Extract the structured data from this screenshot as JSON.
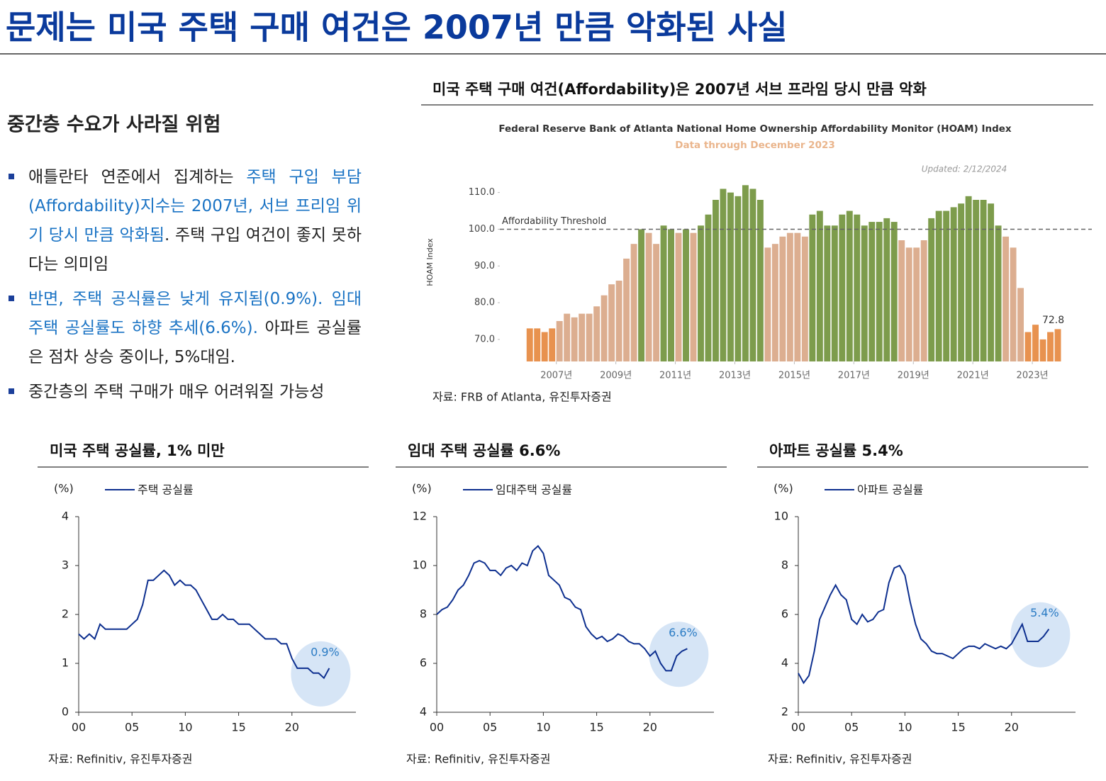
{
  "header": {
    "title": "문제는 미국 주택 구매 여건은 2007년 만큼 악화된 사실"
  },
  "summary": {
    "heading": "중간층 수요가 사라질 위험",
    "bullets": [
      [
        {
          "text": "애틀란타 연준에서 집계하는 ",
          "color": "#222222"
        },
        {
          "text": "주택 구입 부담(Affordability)지수는 2007년, 서브 프리임 위기 당시 만큼 악화됨",
          "color": "#1a73c4"
        },
        {
          "text": ". 주택 구입 여건이 좋지 못하다는 의미임",
          "color": "#222222"
        }
      ],
      [
        {
          "text": "반면, 주택 공식률은 낮게 유지됨(0.9%). 임대 주택 공실률도 하향 추세(6.6%).",
          "color": "#1a73c4"
        },
        {
          "text": " 아파트 공실률은 점차 상승 중이나, 5%대임.",
          "color": "#222222"
        }
      ],
      [
        {
          "text": "중간층의 주택 구매가 매우 어려워질 가능성",
          "color": "#222222"
        }
      ]
    ]
  },
  "chart_data": [
    {
      "type": "bar",
      "section_title": "미국 주택 구매 여건(Affordability)은 2007년 서브 프라임 당시 만큼 악화",
      "title": "Federal Reserve Bank of Atlanta National Home Ownership Affordability Monitor (HOAM) Index",
      "subtitle": "Data through December 2023",
      "note": "Updated: 2/12/2024",
      "y_label": "HOAM Index",
      "threshold": {
        "value": 100,
        "label": "Affordability Threshold"
      },
      "source": "자료: FRB of Atlanta, 유진투자증권",
      "x": [
        2006,
        2006.25,
        2006.5,
        2006.75,
        2007,
        2007.25,
        2007.5,
        2007.75,
        2008,
        2008.25,
        2008.5,
        2008.75,
        2009,
        2009.25,
        2009.5,
        2009.75,
        2010,
        2010.25,
        2010.5,
        2010.75,
        2011,
        2011.25,
        2011.5,
        2011.75,
        2012,
        2012.25,
        2012.5,
        2012.75,
        2013,
        2013.25,
        2013.5,
        2013.75,
        2014,
        2014.25,
        2014.5,
        2014.75,
        2015,
        2015.25,
        2015.5,
        2015.75,
        2016,
        2016.25,
        2016.5,
        2016.75,
        2017,
        2017.25,
        2017.5,
        2017.75,
        2018,
        2018.25,
        2018.5,
        2018.75,
        2019,
        2019.25,
        2019.5,
        2019.75,
        2020,
        2020.25,
        2020.5,
        2020.75,
        2021,
        2021.25,
        2021.5,
        2021.75,
        2022,
        2022.25,
        2022.5,
        2022.75,
        2023,
        2023.25,
        2023.5,
        2023.75
      ],
      "values": [
        73,
        73,
        72,
        73,
        75,
        77,
        76,
        77,
        77,
        79,
        82,
        85,
        86,
        92,
        96,
        100,
        99,
        96,
        101,
        100,
        99,
        100,
        99,
        101,
        104,
        108,
        111,
        110,
        109,
        112,
        111,
        108,
        95,
        96,
        98,
        99,
        99,
        98,
        104,
        105,
        101,
        101,
        104,
        105,
        104,
        101,
        102,
        102,
        103,
        102,
        97,
        95,
        95,
        97,
        103,
        105,
        105,
        106,
        107,
        109,
        108,
        108,
        107,
        101,
        98,
        95,
        84,
        72,
        74,
        70,
        72,
        72.8
      ],
      "palette": [
        "#e8924f",
        "#dcae90",
        "#7d9c4c"
      ],
      "color_index": [
        0,
        0,
        0,
        0,
        1,
        1,
        1,
        1,
        1,
        1,
        1,
        1,
        1,
        1,
        1,
        2,
        1,
        1,
        2,
        2,
        1,
        2,
        1,
        2,
        2,
        2,
        2,
        2,
        2,
        2,
        2,
        2,
        1,
        1,
        1,
        1,
        1,
        1,
        2,
        2,
        2,
        2,
        2,
        2,
        2,
        2,
        2,
        2,
        2,
        2,
        1,
        1,
        1,
        1,
        2,
        2,
        2,
        2,
        2,
        2,
        2,
        2,
        2,
        2,
        1,
        1,
        1,
        0,
        0,
        0,
        0,
        0
      ],
      "xlim": [
        2005.1,
        2025
      ],
      "xticks": [
        {
          "value": 2007,
          "label": "2007년"
        },
        {
          "value": 2009,
          "label": "2009년"
        },
        {
          "value": 2011,
          "label": "2011년"
        },
        {
          "value": 2013,
          "label": "2013년"
        },
        {
          "value": 2015,
          "label": "2015년"
        },
        {
          "value": 2017,
          "label": "2017년"
        },
        {
          "value": 2019,
          "label": "2019년"
        },
        {
          "value": 2021,
          "label": "2021년"
        },
        {
          "value": 2023,
          "label": "2023년"
        }
      ],
      "ylim": [
        64,
        119
      ],
      "yticks": [
        {
          "value": 70,
          "label": "70.0"
        },
        {
          "value": 80,
          "label": "80.0"
        },
        {
          "value": 90,
          "label": "90.0"
        },
        {
          "value": 100,
          "label": "100.0"
        },
        {
          "value": 110,
          "label": "110.0"
        }
      ]
    },
    {
      "type": "line",
      "section_title": "미국 주택 공실률, 1% 미만",
      "unit": "(%)",
      "series": [
        {
          "name": "주택 공실률",
          "color": "#0d2f8f",
          "values": [
            1.6,
            1.5,
            1.6,
            1.5,
            1.8,
            1.7,
            1.7,
            1.7,
            1.7,
            1.7,
            1.8,
            1.9,
            2.2,
            2.7,
            2.7,
            2.8,
            2.9,
            2.8,
            2.6,
            2.7,
            2.6,
            2.6,
            2.5,
            2.3,
            2.1,
            1.9,
            1.9,
            2.0,
            1.9,
            1.9,
            1.8,
            1.8,
            1.8,
            1.7,
            1.6,
            1.5,
            1.5,
            1.5,
            1.4,
            1.4,
            1.1,
            0.9,
            0.9,
            0.9,
            0.8,
            0.8,
            0.7,
            0.9
          ]
        }
      ],
      "x": [
        0,
        0.5,
        1,
        1.5,
        2,
        2.5,
        3,
        3.5,
        4,
        4.5,
        5,
        5.5,
        6,
        6.5,
        7,
        7.5,
        8,
        8.5,
        9,
        9.5,
        10,
        10.5,
        11,
        11.5,
        12,
        12.5,
        13,
        13.5,
        14,
        14.5,
        15,
        15.5,
        16,
        16.5,
        17,
        17.5,
        18,
        18.5,
        19,
        19.5,
        20,
        20.5,
        21,
        21.5,
        22,
        22.5,
        23,
        23.5
      ],
      "xlim": [
        0,
        26
      ],
      "xticks": [
        {
          "value": 0,
          "label": "00"
        },
        {
          "value": 5,
          "label": "05"
        },
        10,
        15,
        20
      ],
      "ylim": [
        0,
        4
      ],
      "yticks": [
        0,
        1,
        2,
        3,
        4
      ],
      "annotation": "0.9%",
      "source": "자료: Refinitiv, 유진투자증권"
    },
    {
      "type": "line",
      "section_title": "임대 주택 공실률 6.6%",
      "unit": "(%)",
      "series": [
        {
          "name": "임대주택 공실률",
          "color": "#0d2f8f",
          "values": [
            8.0,
            8.2,
            8.3,
            8.6,
            9.0,
            9.2,
            9.6,
            10.1,
            10.2,
            10.1,
            9.8,
            9.8,
            9.6,
            9.9,
            10.0,
            9.8,
            10.1,
            10.0,
            10.6,
            10.8,
            10.5,
            9.6,
            9.4,
            9.2,
            8.7,
            8.6,
            8.3,
            8.2,
            7.5,
            7.2,
            7.0,
            7.1,
            6.9,
            7.0,
            7.2,
            7.1,
            6.9,
            6.8,
            6.8,
            6.6,
            6.3,
            6.5,
            6.0,
            5.7,
            5.7,
            6.3,
            6.5,
            6.6
          ]
        }
      ],
      "x": [
        0,
        0.5,
        1,
        1.5,
        2,
        2.5,
        3,
        3.5,
        4,
        4.5,
        5,
        5.5,
        6,
        6.5,
        7,
        7.5,
        8,
        8.5,
        9,
        9.5,
        10,
        10.5,
        11,
        11.5,
        12,
        12.5,
        13,
        13.5,
        14,
        14.5,
        15,
        15.5,
        16,
        16.5,
        17,
        17.5,
        18,
        18.5,
        19,
        19.5,
        20,
        20.5,
        21,
        21.5,
        22,
        22.5,
        23,
        23.5
      ],
      "xlim": [
        0,
        26
      ],
      "xticks": [
        {
          "value": 0,
          "label": "00"
        },
        {
          "value": 5,
          "label": "05"
        },
        10,
        15,
        20
      ],
      "ylim": [
        4,
        12
      ],
      "yticks": [
        4,
        6,
        8,
        10,
        12
      ],
      "annotation": "6.6%",
      "source": "자료: Refinitiv, 유진투자증권"
    },
    {
      "type": "line",
      "section_title": "아파트 공실률 5.4%",
      "unit": "(%)",
      "series": [
        {
          "name": "아파트 공실률",
          "color": "#0d2f8f",
          "values": [
            3.6,
            3.2,
            3.5,
            4.5,
            5.8,
            6.3,
            6.8,
            7.2,
            6.8,
            6.6,
            5.8,
            5.6,
            6.0,
            5.7,
            5.8,
            6.1,
            6.2,
            7.3,
            7.9,
            8.0,
            7.6,
            6.5,
            5.6,
            5.0,
            4.8,
            4.5,
            4.4,
            4.4,
            4.3,
            4.2,
            4.4,
            4.6,
            4.7,
            4.7,
            4.6,
            4.8,
            4.7,
            4.6,
            4.7,
            4.6,
            4.8,
            5.2,
            5.6,
            4.9,
            4.9,
            4.9,
            5.1,
            5.4
          ]
        }
      ],
      "x": [
        0,
        0.5,
        1,
        1.5,
        2,
        2.5,
        3,
        3.5,
        4,
        4.5,
        5,
        5.5,
        6,
        6.5,
        7,
        7.5,
        8,
        8.5,
        9,
        9.5,
        10,
        10.5,
        11,
        11.5,
        12,
        12.5,
        13,
        13.5,
        14,
        14.5,
        15,
        15.5,
        16,
        16.5,
        17,
        17.5,
        18,
        18.5,
        19,
        19.5,
        20,
        20.5,
        21,
        21.5,
        22,
        22.5,
        23,
        23.5
      ],
      "xlim": [
        0,
        26
      ],
      "xticks": [
        {
          "value": 0,
          "label": "00"
        },
        {
          "value": 5,
          "label": "05"
        },
        10,
        15,
        20
      ],
      "ylim": [
        2,
        10
      ],
      "yticks": [
        2,
        4,
        6,
        8,
        10
      ],
      "annotation": "5.4%",
      "source": "자료: Refinitiv, 유진투자증권"
    }
  ]
}
